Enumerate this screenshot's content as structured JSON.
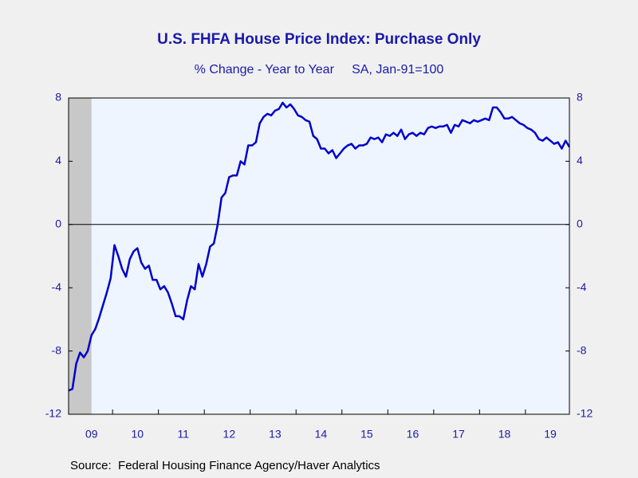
{
  "chart_data": {
    "type": "line",
    "title": "U.S. FHFA House Price Index: Purchase Only",
    "subtitle": "% Change - Year to Year     SA, Jan-91=100",
    "source": "Source:  Federal Housing Finance Agency/Haver Analytics",
    "categories": [
      null,
      null,
      null,
      null,
      null,
      null,
      "09",
      null,
      null,
      null,
      null,
      null,
      null,
      null,
      null,
      null,
      null,
      null,
      "10",
      null,
      null,
      null,
      null,
      null,
      null,
      null,
      null,
      null,
      null,
      null,
      "11",
      null,
      null,
      null,
      null,
      null,
      null,
      null,
      null,
      null,
      null,
      null,
      "12",
      null,
      null,
      null,
      null,
      null,
      null,
      null,
      null,
      null,
      null,
      null,
      "13",
      null,
      null,
      null,
      null,
      null,
      null,
      null,
      null,
      null,
      null,
      null,
      "14",
      null,
      null,
      null,
      null,
      null,
      null,
      null,
      null,
      null,
      null,
      null,
      "15",
      null,
      null,
      null,
      null,
      null,
      null,
      null,
      null,
      null,
      null,
      null,
      "16",
      null,
      null,
      null,
      null,
      null,
      null,
      null,
      null,
      null,
      null,
      null,
      "17",
      null,
      null,
      null,
      null,
      null,
      null,
      null,
      null,
      null,
      null,
      null,
      "18",
      null,
      null,
      null,
      null,
      null,
      null,
      null,
      null,
      null,
      null,
      null,
      "19",
      null,
      null,
      null,
      null,
      null
    ],
    "series": [
      {
        "name": "House Price Index",
        "color": "#0000cc",
        "values": [
          -10.5,
          -10.4,
          -8.8,
          -8.1,
          -8.4,
          -8.0,
          -7.0,
          -6.6,
          -5.9,
          -5.1,
          -4.3,
          -3.4,
          -1.3,
          -2.0,
          -2.8,
          -3.3,
          -2.2,
          -1.7,
          -1.5,
          -2.4,
          -2.8,
          -2.6,
          -3.5,
          -3.5,
          -4.1,
          -3.9,
          -4.3,
          -5.0,
          -5.8,
          -5.8,
          -6.0,
          -4.8,
          -3.9,
          -4.1,
          -2.5,
          -3.3,
          -2.5,
          -1.4,
          -1.2,
          0.0,
          1.7,
          2.0,
          3.0,
          3.1,
          3.1,
          4.0,
          3.8,
          5.0,
          5.0,
          5.2,
          6.4,
          6.8,
          7.0,
          6.9,
          7.2,
          7.3,
          7.7,
          7.4,
          7.6,
          7.3,
          6.9,
          6.8,
          6.6,
          6.5,
          5.6,
          5.4,
          4.8,
          4.8,
          4.5,
          4.7,
          4.2,
          4.5,
          4.8,
          5.0,
          5.1,
          4.8,
          5.0,
          5.0,
          5.1,
          5.5,
          5.4,
          5.5,
          5.2,
          5.7,
          5.6,
          5.8,
          5.6,
          6.0,
          5.4,
          5.7,
          5.8,
          5.6,
          5.8,
          5.7,
          6.1,
          6.2,
          6.1,
          6.2,
          6.2,
          6.3,
          5.8,
          6.3,
          6.2,
          6.6,
          6.5,
          6.4,
          6.6,
          6.5,
          6.6,
          6.7,
          6.6,
          7.4,
          7.4,
          7.1,
          6.7,
          6.7,
          6.8,
          6.6,
          6.4,
          6.3,
          6.1,
          6.0,
          5.8,
          5.4,
          5.3,
          5.5,
          5.3,
          5.1,
          5.2,
          4.8,
          5.3,
          4.9
        ]
      }
    ],
    "ylim": [
      -12,
      8
    ],
    "yticks": [
      -12,
      -8,
      -4,
      0,
      4,
      8
    ],
    "y2lim": [
      -12,
      8
    ],
    "y2ticks": [
      -12,
      -8,
      -4,
      0,
      4,
      8
    ],
    "recession": [
      0,
      5
    ],
    "zero_line": true
  }
}
